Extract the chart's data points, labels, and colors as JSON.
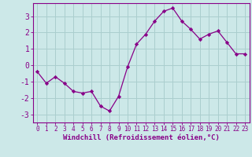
{
  "x": [
    0,
    1,
    2,
    3,
    4,
    5,
    6,
    7,
    8,
    9,
    10,
    11,
    12,
    13,
    14,
    15,
    16,
    17,
    18,
    19,
    20,
    21,
    22,
    23
  ],
  "y": [
    -0.4,
    -1.1,
    -0.7,
    -1.1,
    -1.6,
    -1.7,
    -1.6,
    -2.5,
    -2.8,
    -1.9,
    -0.1,
    1.3,
    1.9,
    2.7,
    3.3,
    3.5,
    2.7,
    2.2,
    1.6,
    1.9,
    2.1,
    1.4,
    0.7,
    0.7
  ],
  "ylim": [
    -3.5,
    3.8
  ],
  "yticks": [
    -3,
    -2,
    -1,
    0,
    1,
    2,
    3
  ],
  "xticks": [
    0,
    1,
    2,
    3,
    4,
    5,
    6,
    7,
    8,
    9,
    10,
    11,
    12,
    13,
    14,
    15,
    16,
    17,
    18,
    19,
    20,
    21,
    22,
    23
  ],
  "xlabel": "Windchill (Refroidissement éolien,°C)",
  "line_color": "#880088",
  "marker_color": "#880088",
  "bg_color": "#cce8e8",
  "grid_color": "#aacece",
  "axis_color": "#880088",
  "tick_color": "#880088",
  "xlabel_color": "#880088",
  "xlabel_fontsize": 6.5,
  "ytick_fontsize": 7.0,
  "xtick_fontsize": 5.5,
  "xlabel_fontweight": "bold"
}
